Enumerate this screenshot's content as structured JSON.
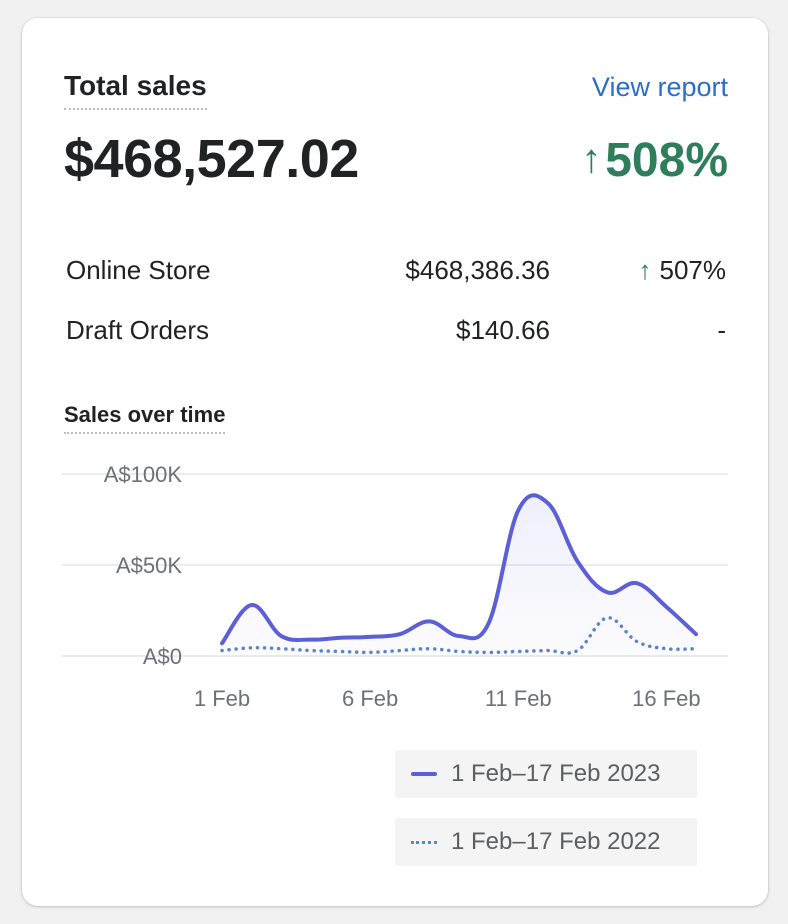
{
  "header": {
    "title": "Total sales",
    "view_report": "View report",
    "total": "$468,527.02",
    "growth_arrow": "↑",
    "growth": "508%"
  },
  "breakdown": [
    {
      "label": "Online Store",
      "value": "$468,386.36",
      "arrow": "↑",
      "pct": "507%"
    },
    {
      "label": "Draft Orders",
      "value": "$140.66",
      "arrow": "",
      "pct": "-"
    }
  ],
  "chart_title": "Sales over time",
  "colors": {
    "current": "#5c5fd6",
    "previous": "#5a86c9",
    "positive": "#2e7d5b",
    "link": "#2c6ecb"
  },
  "chart_data": {
    "type": "area",
    "title": "Sales over time",
    "x": [
      "1 Feb",
      "2 Feb",
      "3 Feb",
      "4 Feb",
      "5 Feb",
      "6 Feb",
      "7 Feb",
      "8 Feb",
      "9 Feb",
      "10 Feb",
      "11 Feb",
      "12 Feb",
      "13 Feb",
      "14 Feb",
      "15 Feb",
      "16 Feb",
      "17 Feb"
    ],
    "x_tick_labels": [
      "1 Feb",
      "6 Feb",
      "11 Feb",
      "16 Feb"
    ],
    "y_tick_labels": [
      "A$0",
      "A$50K",
      "A$100K"
    ],
    "ylim": [
      0,
      100000
    ],
    "grid": true,
    "legend_position": "bottom-right",
    "series": [
      {
        "name": "1 Feb–17 Feb 2023",
        "style": "solid",
        "values": [
          7000,
          28000,
          11000,
          9000,
          10000,
          10500,
          12000,
          19000,
          11000,
          18000,
          80000,
          84000,
          52000,
          35000,
          40000,
          27000,
          12000
        ]
      },
      {
        "name": "1 Feb–17 Feb 2022",
        "style": "dotted",
        "values": [
          3000,
          4500,
          4000,
          3000,
          2500,
          2000,
          3000,
          4000,
          2500,
          2000,
          2500,
          3000,
          3000,
          21000,
          8000,
          4000,
          4000
        ]
      }
    ]
  }
}
